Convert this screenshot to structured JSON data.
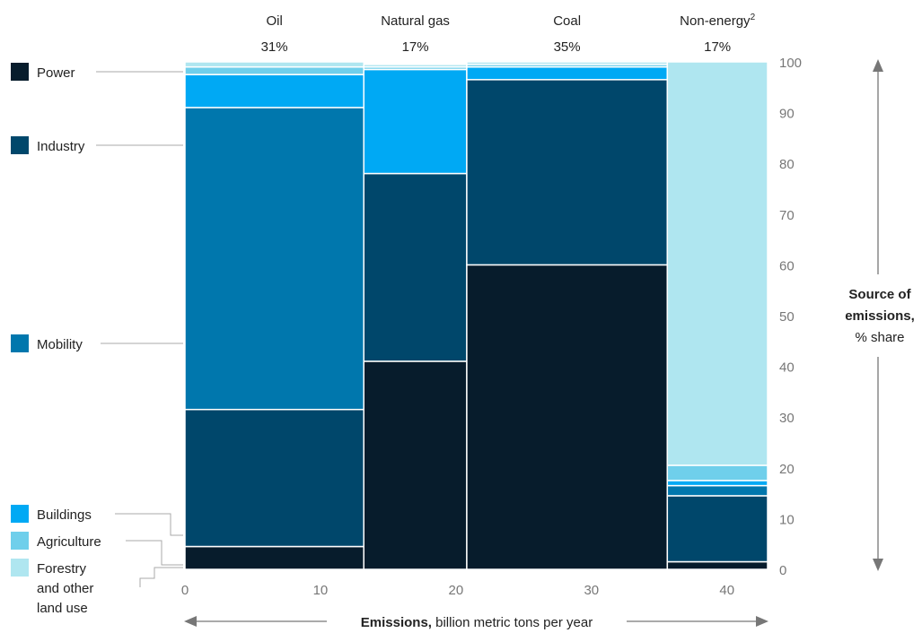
{
  "chart_data": {
    "type": "bar",
    "columns": [
      {
        "name": "Oil",
        "share": "31%",
        "sup": "",
        "width": 13.2
      },
      {
        "name": "Natural gas",
        "share": "17%",
        "sup": "",
        "width": 7.6
      },
      {
        "name": "Coal",
        "share": "35%",
        "sup": "",
        "width": 14.8
      },
      {
        "name": "Non-energy",
        "share": "17%",
        "sup": "2",
        "width": 7.4
      }
    ],
    "series": [
      {
        "name": "Power",
        "color": "#071c2c",
        "values": [
          4.5,
          41,
          60,
          1.5
        ]
      },
      {
        "name": "Industry",
        "color": "#00476b",
        "values": [
          27,
          37,
          36.5,
          13
        ]
      },
      {
        "name": "Mobility",
        "color": "#0077ad",
        "values": [
          59.5,
          0,
          0,
          2
        ]
      },
      {
        "name": "Buildings",
        "color": "#00a9f4",
        "values": [
          6.5,
          20.5,
          2.5,
          1
        ]
      },
      {
        "name": "Agriculture",
        "color": "#6fcfeb",
        "values": [
          1.5,
          0.5,
          0.5,
          3
        ]
      },
      {
        "name": "Forestry and other land use",
        "color": "#afe6f0",
        "values": [
          1,
          0.5,
          0.5,
          79.5
        ]
      }
    ],
    "legend": {
      "items": [
        {
          "series": "Power",
          "lines": [
            "Power"
          ]
        },
        {
          "series": "Industry",
          "lines": [
            "Industry"
          ]
        },
        {
          "series": "Mobility",
          "lines": [
            "Mobility"
          ]
        },
        {
          "series": "Buildings",
          "lines": [
            "Buildings"
          ]
        },
        {
          "series": "Agriculture",
          "lines": [
            "Agriculture"
          ]
        },
        {
          "series": "Forestry and other land use",
          "lines": [
            "Forestry",
            "and other",
            "land use"
          ]
        }
      ],
      "placement": "left"
    },
    "x_axis": {
      "ticks": [
        0,
        10,
        20,
        30,
        40
      ],
      "xlim": [
        0,
        43
      ],
      "title_bold": "Emissions,",
      "title_rest": "billion metric tons per year"
    },
    "y_axis": {
      "ticks": [
        0,
        10,
        20,
        30,
        40,
        50,
        60,
        70,
        80,
        90,
        100
      ],
      "ylim": [
        0,
        100
      ],
      "title_lines": [
        "Source of",
        "emissions,",
        "% share"
      ],
      "placement": "right"
    },
    "grid": false
  }
}
